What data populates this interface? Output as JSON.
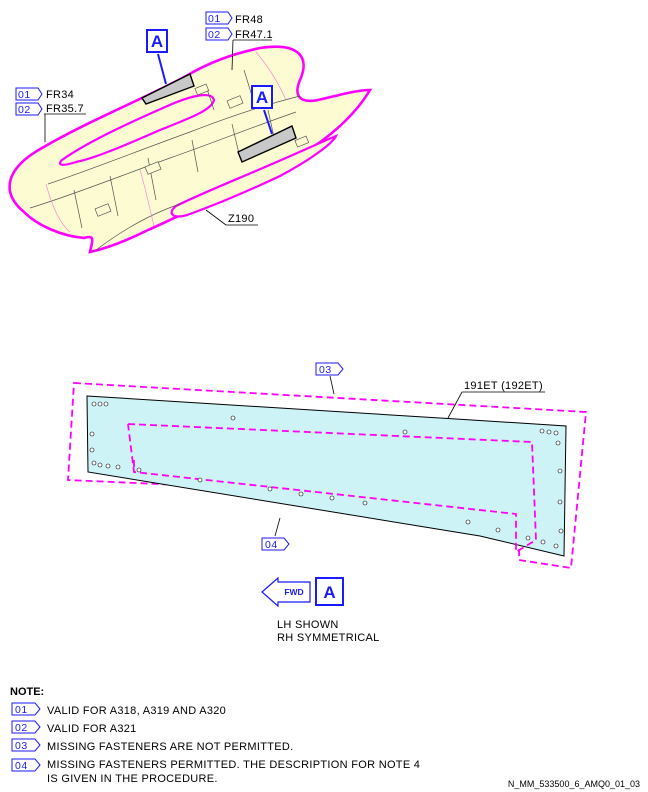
{
  "callouts": {
    "fr48": "FR48",
    "fr47_1": "FR47.1",
    "fr34": "FR34",
    "fr35_7": "FR35.7",
    "z190": "Z190",
    "view_a": "A",
    "part": "191ET (192ET)"
  },
  "tags": {
    "t01": "01",
    "t02": "02",
    "t03": "03",
    "t04": "04"
  },
  "orientation": {
    "fwd": "FWD",
    "view": "A",
    "line1": "LH SHOWN",
    "line2": "RH SYMMETRICAL"
  },
  "notes": {
    "title": "NOTE:",
    "items": [
      {
        "tag": "01",
        "text": "VALID FOR A318, A319 AND A320"
      },
      {
        "tag": "02",
        "text": "VALID FOR A321"
      },
      {
        "tag": "03",
        "text": "MISSING FASTENERS ARE NOT PERMITTED."
      },
      {
        "tag": "04",
        "text": "MISSING FASTENERS PERMITTED. THE DESCRIPTION FOR NOTE 4",
        "text2": "IS GIVEN IN THE PROCEDURE."
      }
    ]
  },
  "reference": "N_MM_533500_6_AMQ0_01_03",
  "colors": {
    "zone": "#ff00ff",
    "tag": "#1a1aff",
    "fuselage_fill": "#fdfbd2",
    "panel_fill": "#cdf3f7"
  }
}
